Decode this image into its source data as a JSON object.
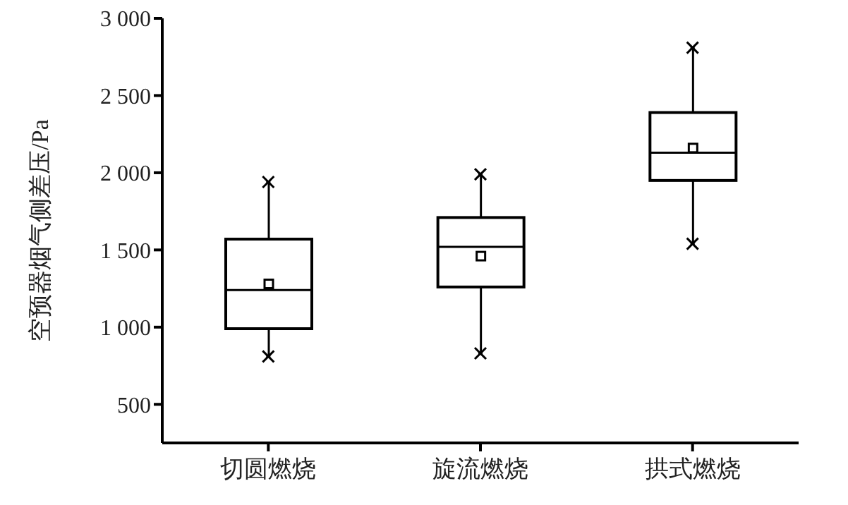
{
  "chart_data": {
    "type": "box",
    "ylabel": "空预器烟气侧差压/Pa",
    "categories": [
      "切圆燃烧",
      "旋流燃烧",
      "拱式燃烧"
    ],
    "color": "#000000",
    "boxes": [
      {
        "low": 810,
        "q1": 990,
        "median": 1240,
        "q3": 1570,
        "high": 1940,
        "mean": 1280
      },
      {
        "low": 830,
        "q1": 1260,
        "median": 1520,
        "q3": 1710,
        "high": 1990,
        "mean": 1460
      },
      {
        "low": 1540,
        "q1": 1950,
        "median": 2130,
        "q3": 2390,
        "high": 2810,
        "mean": 2160
      }
    ],
    "ylim": [
      250,
      3000
    ],
    "yticks": [
      500,
      {
        "value": 1000,
        "label": "1 000"
      },
      {
        "value": 1500,
        "label": "1 500"
      },
      {
        "value": 2000,
        "label": "2 000"
      },
      {
        "value": 2500,
        "label": "2 500"
      },
      {
        "value": 3000,
        "label": "3 000"
      }
    ],
    "grid": false,
    "legend": false
  }
}
